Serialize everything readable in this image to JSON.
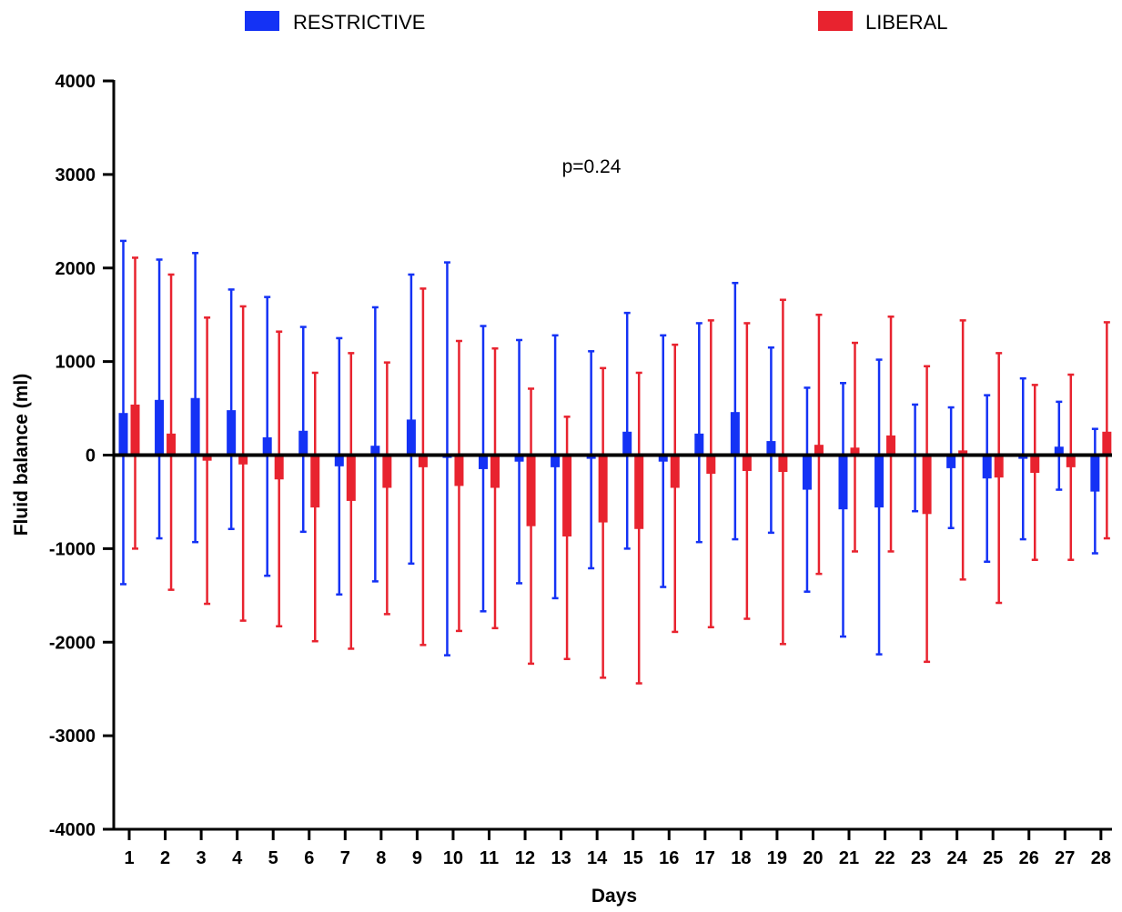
{
  "colors": {
    "restrictive": "#1432f5",
    "liberal": "#e8232f",
    "axis": "#000000"
  },
  "chart_data": {
    "type": "bar",
    "xlabel": "Days",
    "ylabel": "Fluid balance (ml)",
    "ylim": [
      -4000,
      4000
    ],
    "yticks": [
      -4000,
      -3000,
      -2000,
      -1000,
      0,
      1000,
      2000,
      3000,
      4000
    ],
    "ytick_labels": [
      "-4000",
      "-3000",
      "-2000",
      "-1000",
      "0",
      "1000",
      "2000",
      "3000",
      "4000"
    ],
    "categories": [
      "1",
      "2",
      "3",
      "4",
      "5",
      "6",
      "7",
      "8",
      "9",
      "10",
      "11",
      "12",
      "13",
      "14",
      "15",
      "16",
      "17",
      "18",
      "19",
      "20",
      "21",
      "22",
      "23",
      "24",
      "25",
      "26",
      "27",
      "28"
    ],
    "legend_position": "top",
    "annotation": "p=0.24",
    "error_bars": "upper and lower whiskers",
    "series": [
      {
        "name": "RESTRICTIVE",
        "values": [
          450,
          590,
          610,
          480,
          190,
          260,
          -120,
          100,
          380,
          -30,
          -150,
          -70,
          -130,
          -40,
          250,
          -70,
          230,
          460,
          150,
          -370,
          -580,
          -560,
          -20,
          -140,
          -250,
          -40,
          90,
          -390
        ],
        "err_high": [
          2290,
          2090,
          2160,
          1770,
          1690,
          1370,
          1250,
          1580,
          1930,
          2060,
          1380,
          1230,
          1280,
          1110,
          1520,
          1280,
          1410,
          1840,
          1150,
          720,
          770,
          1020,
          540,
          510,
          640,
          820,
          570,
          280
        ],
        "err_low": [
          -1380,
          -890,
          -930,
          -790,
          -1290,
          -820,
          -1490,
          -1350,
          -1160,
          -2140,
          -1670,
          -1370,
          -1530,
          -1210,
          -1000,
          -1410,
          -930,
          -900,
          -830,
          -1460,
          -1940,
          -2130,
          -600,
          -780,
          -1140,
          -900,
          -370,
          -1050
        ]
      },
      {
        "name": "LIBERAL",
        "values": [
          540,
          230,
          -60,
          -100,
          -260,
          -560,
          -490,
          -350,
          -130,
          -330,
          -350,
          -760,
          -870,
          -720,
          -790,
          -350,
          -200,
          -170,
          -180,
          110,
          80,
          210,
          -630,
          50,
          -240,
          -190,
          -130,
          250
        ],
        "err_high": [
          2110,
          1930,
          1470,
          1590,
          1320,
          880,
          1090,
          990,
          1780,
          1220,
          1140,
          710,
          410,
          930,
          880,
          1180,
          1440,
          1410,
          1660,
          1500,
          1200,
          1480,
          950,
          1440,
          1090,
          750,
          860,
          1420
        ],
        "err_low": [
          -1000,
          -1440,
          -1590,
          -1770,
          -1830,
          -1990,
          -2070,
          -1700,
          -2030,
          -1880,
          -1850,
          -2230,
          -2180,
          -2380,
          -2440,
          -1890,
          -1840,
          -1750,
          -2020,
          -1270,
          -1030,
          -1030,
          -2210,
          -1330,
          -1580,
          -1120,
          -1120,
          -890
        ]
      }
    ]
  }
}
